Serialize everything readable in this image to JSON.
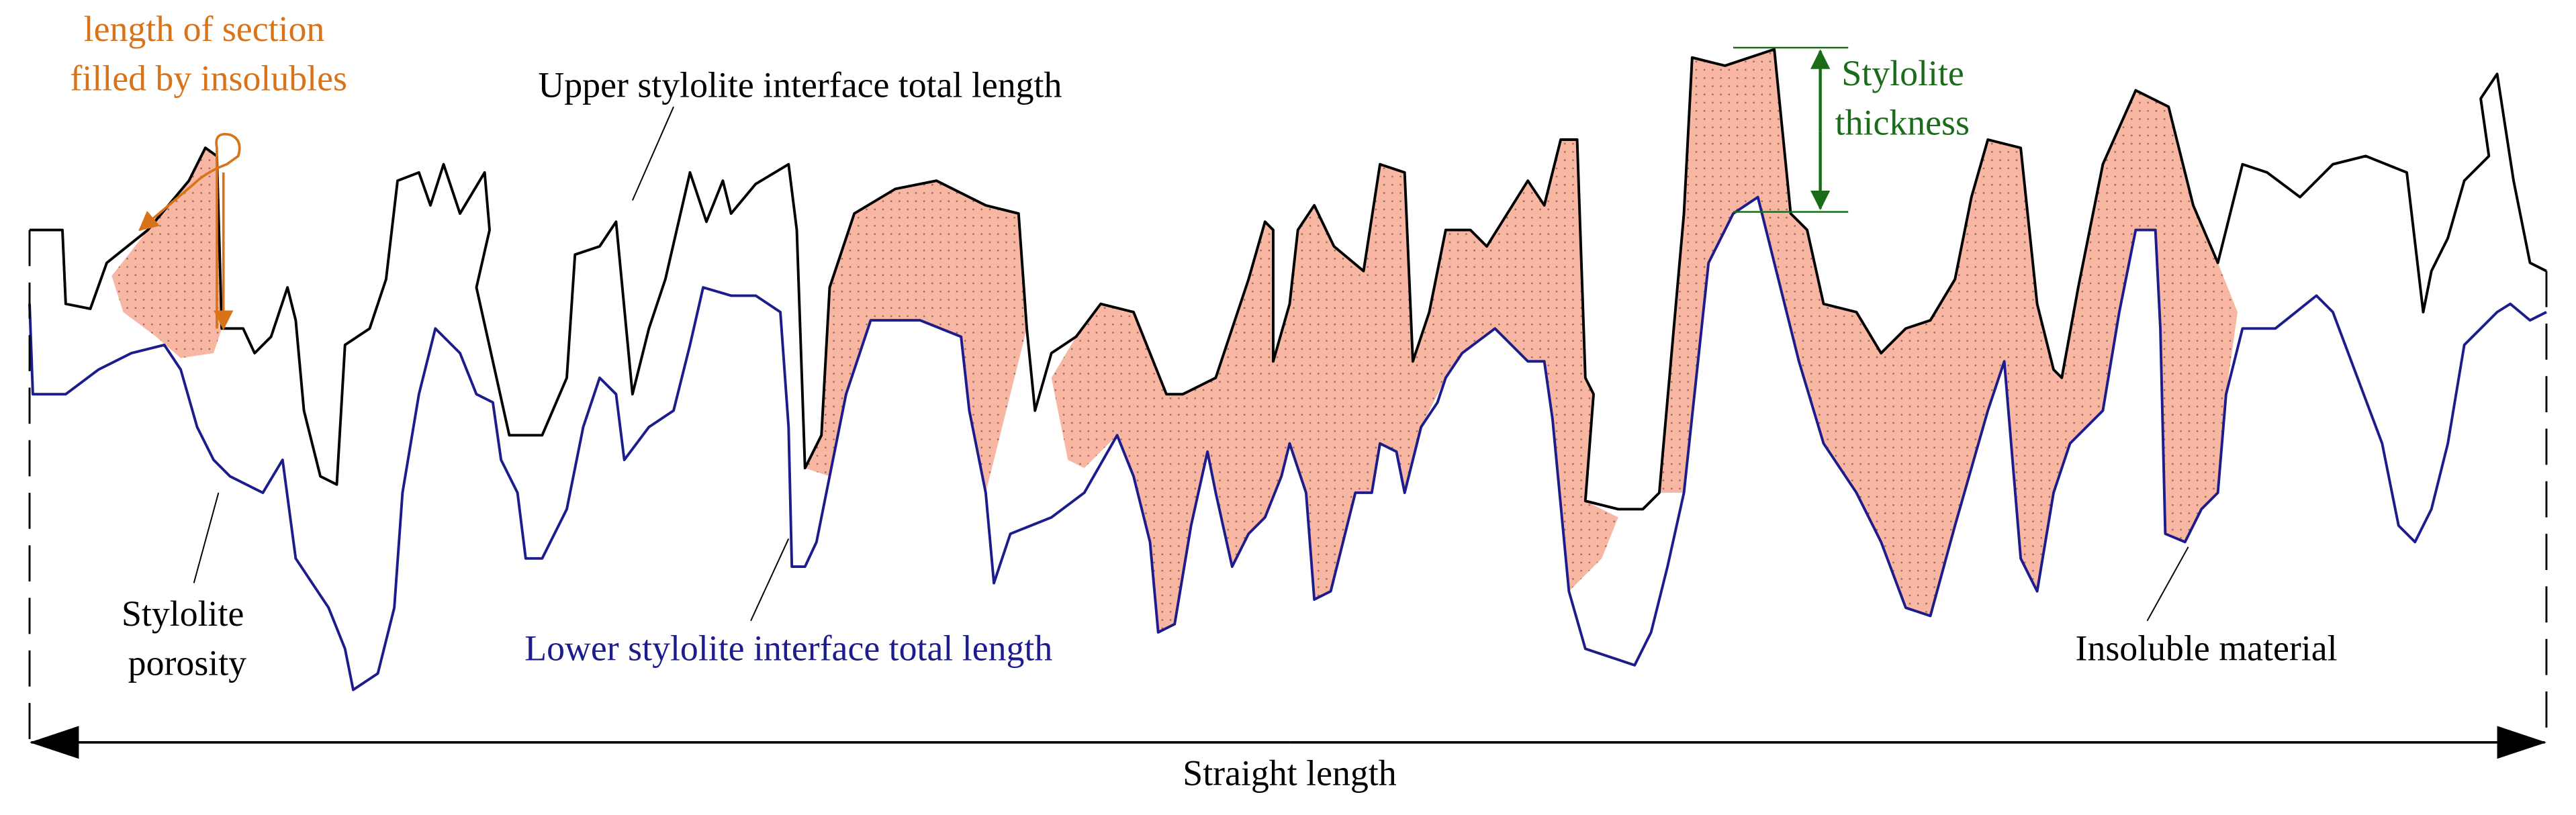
{
  "annotations": {
    "insolubles_length": [
      "length of section",
      "filled by insolubles"
    ],
    "upper_interface": "Upper stylolite interface total length",
    "thickness": [
      "Stylolite",
      "thickness"
    ],
    "porosity": [
      "Stylolite",
      "porosity"
    ],
    "lower_interface": "Lower stylolite interface total length",
    "insoluble_material": "Insoluble material",
    "straight_length": "Straight length"
  }
}
